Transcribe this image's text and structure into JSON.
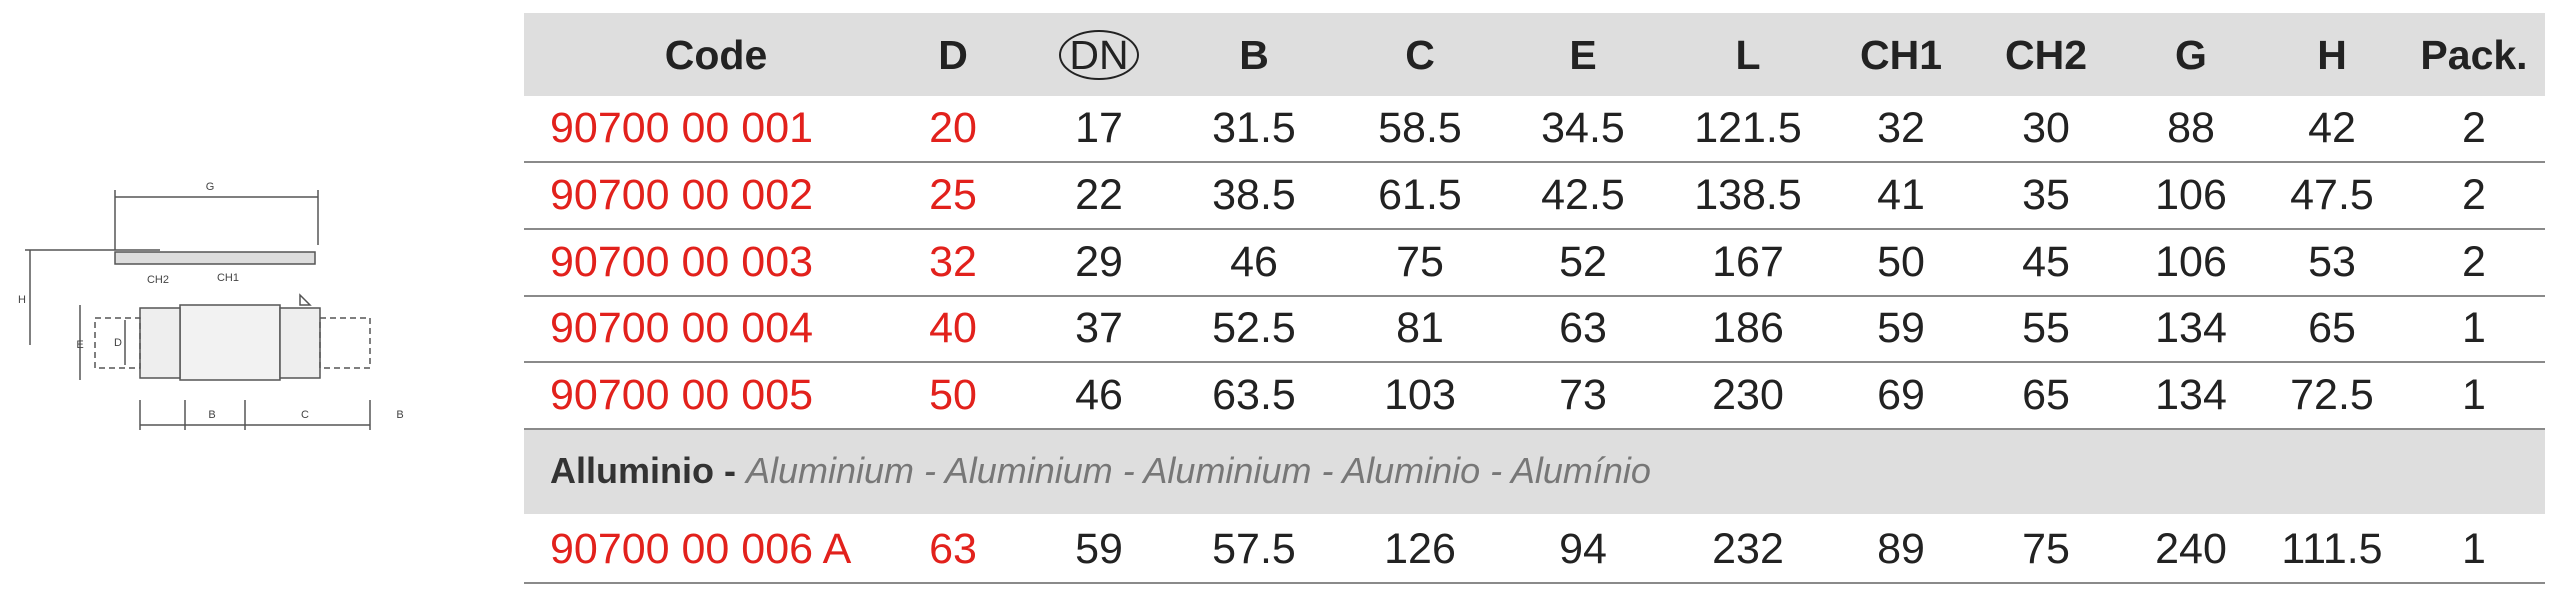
{
  "diagram": {
    "labels": [
      "G",
      "H",
      "CH2",
      "CH1",
      "E",
      "D",
      "B",
      "C",
      "B"
    ]
  },
  "table": {
    "header": [
      "Code",
      "D",
      "DN",
      "B",
      "C",
      "E",
      "L",
      "CH1",
      "CH2",
      "G",
      "H",
      "Pack."
    ],
    "rows": [
      [
        "90700 00 001",
        20,
        17,
        31.5,
        58.5,
        34.5,
        121.5,
        32,
        30,
        88,
        42,
        2
      ],
      [
        "90700 00 002",
        25,
        22,
        38.5,
        61.5,
        42.5,
        138.5,
        41,
        35,
        106,
        47.5,
        2
      ],
      [
        "90700 00 003",
        32,
        29,
        46,
        75,
        52,
        167,
        50,
        45,
        106,
        53,
        2
      ],
      [
        "90700 00 004",
        40,
        37,
        52.5,
        81,
        63,
        186,
        59,
        55,
        134,
        65,
        1
      ],
      [
        "90700 00 005",
        50,
        46,
        63.5,
        103,
        73,
        230,
        69,
        65,
        134,
        72.5,
        1
      ]
    ],
    "section": {
      "bold": "Alluminio -",
      "italic": "Aluminium - Aluminium - Aluminium - Aluminio - Alumínio"
    },
    "rows2": [
      [
        "90700 00 006 A",
        63,
        59,
        57.5,
        126,
        94,
        232,
        89,
        75,
        240,
        111.5,
        1
      ]
    ]
  }
}
